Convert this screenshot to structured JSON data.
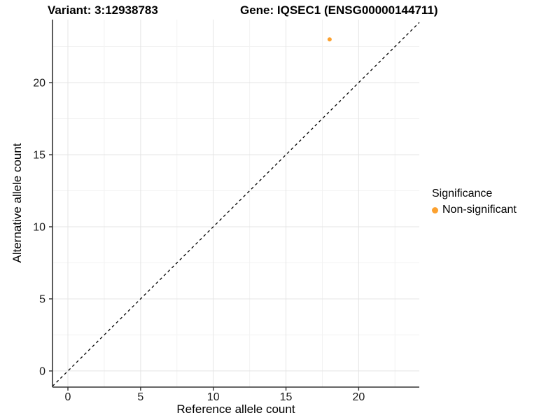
{
  "header": {
    "variant_title": "Variant: 3:12938783",
    "gene_title": "Gene: IQSEC1 (ENSG00000144711)"
  },
  "chart_data": {
    "type": "scatter",
    "xlabel": "Reference allele count",
    "ylabel": "Alternative allele count",
    "xlim": [
      -1.06,
      24.17
    ],
    "ylim": [
      -1.12,
      24.37
    ],
    "x_ticks": [
      0,
      5,
      10,
      15,
      20
    ],
    "y_ticks": [
      0,
      5,
      10,
      15,
      20
    ],
    "minor_grid_step": 2.5,
    "grid": "major+minor",
    "identity_line": {
      "slope": 1,
      "intercept": 0,
      "style": "dashed",
      "color": "#000000"
    },
    "series": [
      {
        "name": "Non-significant",
        "color": "#FCA12F",
        "point_radius": 3,
        "points": [
          {
            "x": 18,
            "y": 23
          }
        ]
      }
    ],
    "legend": {
      "title": "Significance",
      "position": "right",
      "items": [
        {
          "label": "Non-significant",
          "color": "#FCA12F"
        }
      ]
    }
  },
  "colors": {
    "background": "#FFFFFF",
    "panel_background": "#FFFFFF",
    "grid_major": "#E4E4E4",
    "grid_minor": "#F2F2F2",
    "axis_line": "#333333",
    "tick_label": "#1A1A1A",
    "text": "#000000"
  }
}
